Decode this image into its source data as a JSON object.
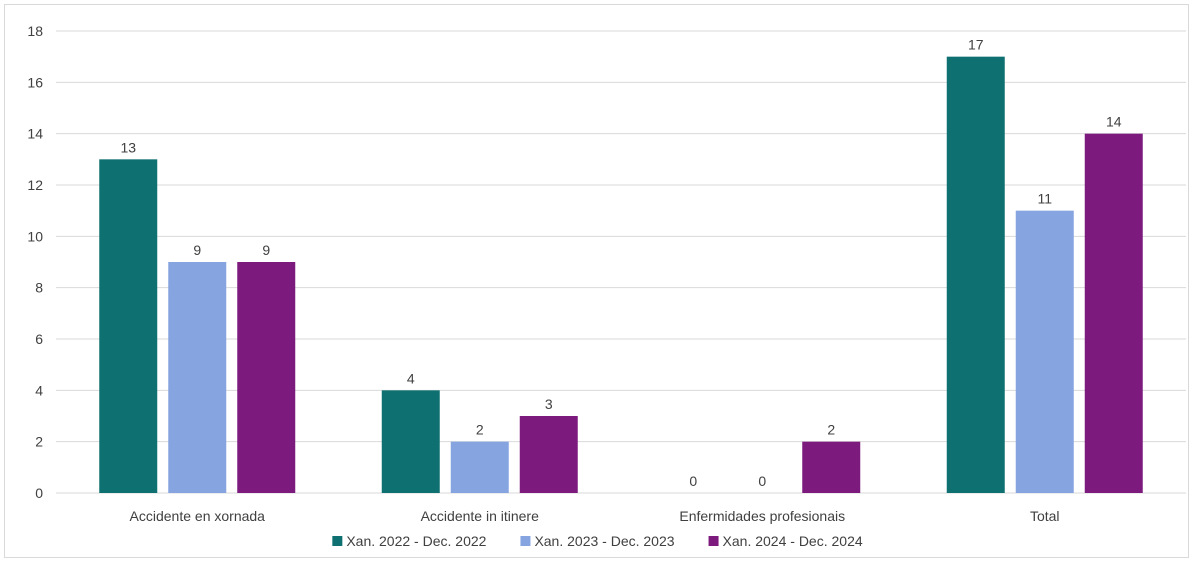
{
  "chart_data": {
    "type": "bar",
    "title": "",
    "xlabel": "",
    "ylabel": "",
    "categories": [
      "Accidente en xornada",
      "Accidente in itinere",
      "Enfermidades profesionais",
      "Total"
    ],
    "series": [
      {
        "name": "Xan. 2022 - Dec. 2022",
        "color": "#0e7070",
        "values": [
          13,
          4,
          0,
          17
        ]
      },
      {
        "name": "Xan. 2023 - Dec. 2023",
        "color": "#86a4e0",
        "values": [
          9,
          2,
          0,
          11
        ]
      },
      {
        "name": "Xan. 2024 - Dec. 2024",
        "color": "#7d1a7d",
        "values": [
          9,
          3,
          2,
          14
        ]
      }
    ],
    "ylim": [
      0,
      18
    ],
    "yticks": [
      0,
      2,
      4,
      6,
      8,
      10,
      12,
      14,
      16,
      18
    ],
    "grid": true,
    "legend_position": "bottom",
    "data_labels": true
  }
}
